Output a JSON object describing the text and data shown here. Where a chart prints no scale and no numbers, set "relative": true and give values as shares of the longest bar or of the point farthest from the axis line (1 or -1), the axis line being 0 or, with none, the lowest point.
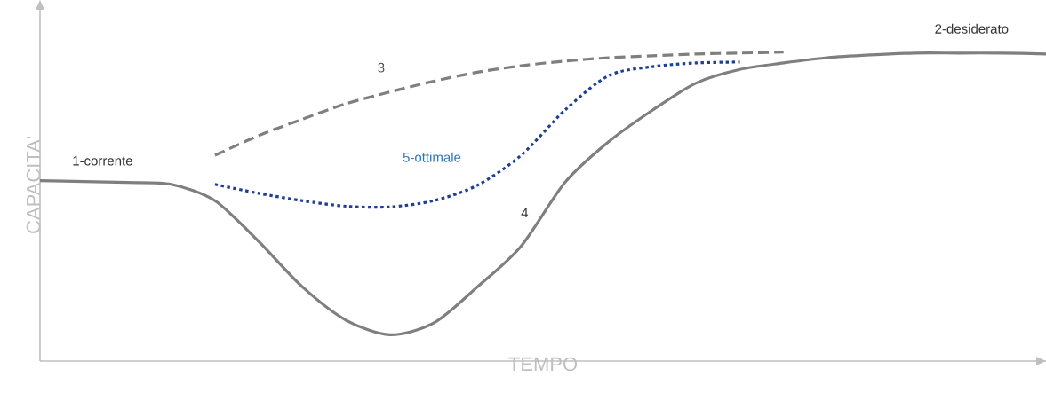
{
  "chart_data": {
    "type": "line",
    "relative": true,
    "xlabel": "TEMPO",
    "ylabel": "CAPACITA'",
    "categories": [
      null,
      null,
      null,
      null,
      null,
      null,
      null,
      null,
      null,
      null,
      null,
      null,
      null,
      null,
      null,
      null,
      null,
      null,
      null,
      null,
      null,
      null,
      null,
      null
    ],
    "series": [
      {
        "color": "#7f7f7f",
        "line_style": "solid",
        "values": [
          0.584,
          0.581,
          0.578,
          0.572,
          0.519,
          0.387,
          0.24,
          0.132,
          0.085,
          0.123,
          0.24,
          0.372,
          0.578,
          0.71,
          0.812,
          0.9,
          0.944,
          0.965,
          0.982,
          0.991,
          0.997,
          0.997,
          0.997,
          0.994
        ]
      },
      {
        "name": "3",
        "color": "#7f7f7f",
        "line_style": "dashed",
        "values": [
          null,
          null,
          null,
          null,
          0.666,
          0.73,
          0.783,
          0.833,
          0.871,
          0.906,
          0.935,
          0.956,
          0.971,
          0.982,
          0.988,
          0.994,
          0.997,
          1.0,
          null,
          null,
          null,
          null,
          null,
          null
        ]
      },
      {
        "name": "5-ottimale",
        "color": "#1f3f8f",
        "line_style": "dotted",
        "values": [
          null,
          null,
          null,
          null,
          0.572,
          0.543,
          0.519,
          0.501,
          0.499,
          0.519,
          0.569,
          0.666,
          0.812,
          0.924,
          0.953,
          0.965,
          0.968,
          null,
          null,
          null,
          null,
          null,
          null,
          null
        ]
      }
    ],
    "annotations": [
      "1-corrente",
      "2-desiderato",
      "4"
    ]
  }
}
